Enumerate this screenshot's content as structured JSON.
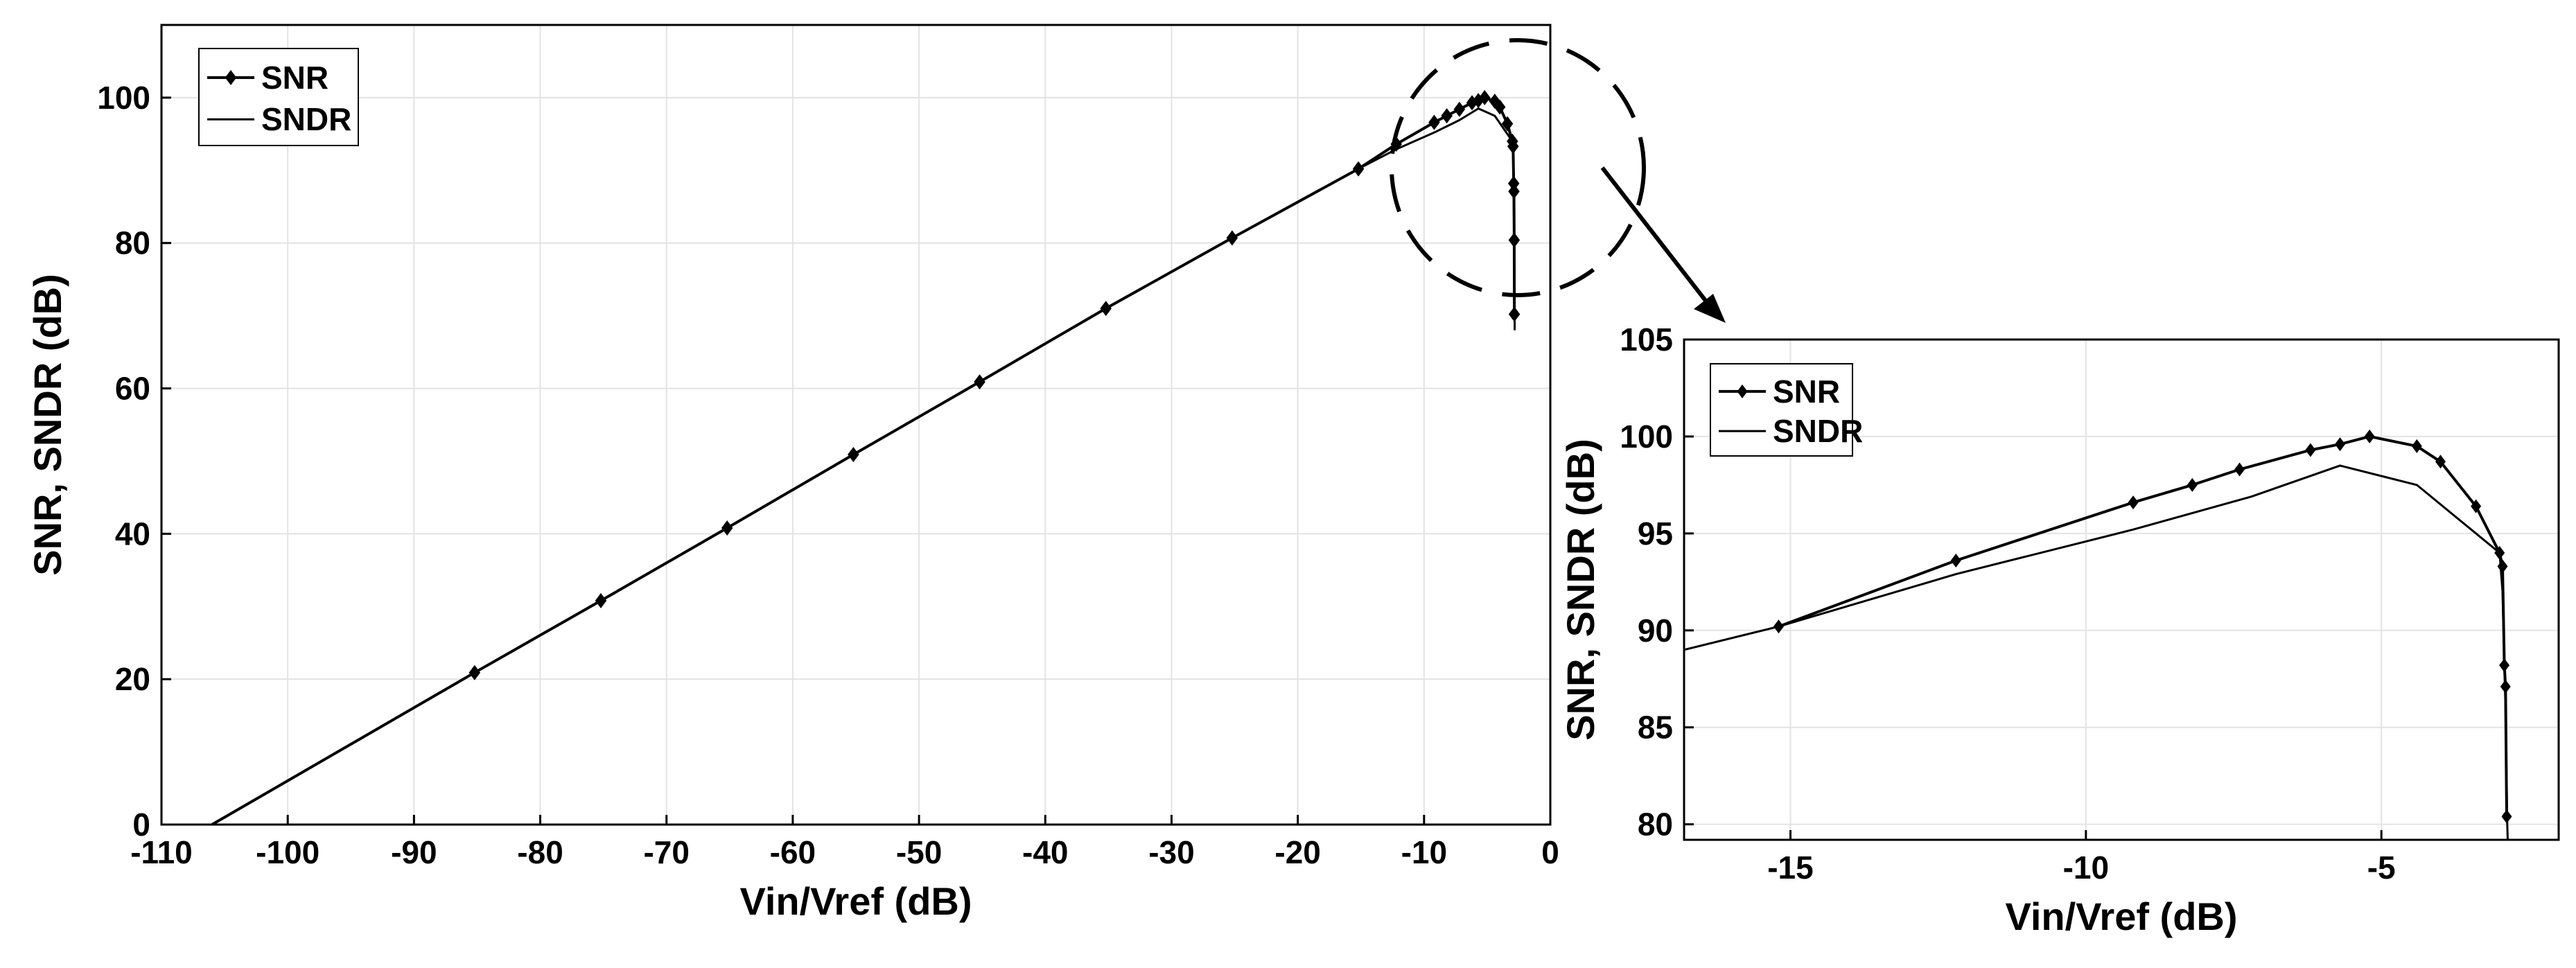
{
  "chart_data": [
    {
      "type": "line",
      "xlabel": "Vin/Vref (dB)",
      "ylabel": "SNR, SNDR (dB)",
      "xlim": [
        -110,
        0
      ],
      "ylim": [
        0,
        110
      ],
      "xticks": [
        -110,
        -100,
        -90,
        -80,
        -70,
        -60,
        -50,
        -40,
        -30,
        -20,
        -10,
        0
      ],
      "yticks": [
        0,
        20,
        40,
        60,
        80,
        100
      ],
      "grid": true,
      "legend_position": "top-left",
      "series": [
        {
          "name": "SNR",
          "marker": "diamond",
          "x": [
            -106,
            -85.2,
            -75.2,
            -65.2,
            -55.2,
            -45.2,
            -35.2,
            -25.2,
            -15.2,
            -12.2,
            -9.2,
            -8.2,
            -7.2,
            -6.2,
            -5.7,
            -5.2,
            -4.4,
            -4,
            -3.4,
            -3,
            -2.95,
            -2.9,
            -2.88,
            -2.86,
            -2.85
          ],
          "y": [
            0,
            20.9,
            30.8,
            40.8,
            50.9,
            60.9,
            71,
            80.7,
            90.2,
            93.6,
            96.6,
            97.5,
            98.4,
            99.3,
            99.6,
            100,
            99.5,
            98.7,
            96.4,
            94,
            93.3,
            88.2,
            87.1,
            80.4,
            70.2
          ]
        },
        {
          "name": "SNDR",
          "marker": "none",
          "x": [
            -106,
            -85.2,
            -75.2,
            -65.2,
            -55.2,
            -45.2,
            -35.2,
            -25.2,
            -15.2,
            -12.2,
            -9.2,
            -7.2,
            -5.7,
            -4.4,
            -3,
            -2.95,
            -2.9,
            -2.85,
            -2.82
          ],
          "y": [
            0,
            20.9,
            30.8,
            40.8,
            50.9,
            60.9,
            71,
            80.7,
            90.2,
            92.9,
            95.2,
            96.9,
            98.5,
            97.5,
            94,
            92,
            86,
            78,
            68
          ]
        }
      ]
    },
    {
      "type": "line",
      "xlabel": "Vin/Vref (dB)",
      "ylabel": "SNR, SNDR (dB)",
      "xlim": [
        -16.8,
        -2
      ],
      "ylim": [
        79.2,
        105
      ],
      "xticks": [
        -15,
        -10,
        -5
      ],
      "yticks": [
        80,
        85,
        90,
        95,
        100,
        105
      ],
      "grid": true,
      "legend_position": "top-left",
      "series": [
        {
          "name": "SNR",
          "marker": "diamond",
          "x": [
            -15.2,
            -12.2,
            -9.2,
            -8.2,
            -7.4,
            -6.2,
            -5.7,
            -5.2,
            -4.4,
            -4.0,
            -3.4,
            -3.0,
            -2.95,
            -2.92,
            -2.9,
            -2.88
          ],
          "y": [
            90.2,
            93.6,
            96.6,
            97.5,
            98.3,
            99.3,
            99.6,
            100.0,
            99.5,
            98.7,
            96.4,
            94.0,
            93.3,
            88.2,
            87.1,
            80.4
          ]
        },
        {
          "name": "SNDR",
          "marker": "none",
          "x": [
            -16.8,
            -15.2,
            -12.2,
            -9.2,
            -7.2,
            -5.7,
            -4.4,
            -3.0,
            -2.95,
            -2.9,
            -2.87,
            -2.85
          ],
          "y": [
            89.0,
            90.2,
            92.9,
            95.2,
            96.9,
            98.5,
            97.5,
            94.0,
            92.0,
            86.0,
            80.0,
            78.0
          ]
        }
      ]
    }
  ]
}
